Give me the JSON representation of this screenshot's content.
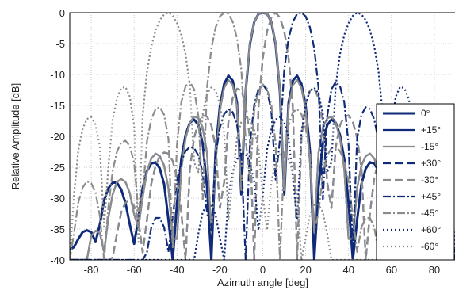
{
  "chart_data": {
    "type": "line",
    "title": "",
    "xlabel": "Azimuth angle [deg]",
    "ylabel": "Relative Amplitude [dB]",
    "xlim": [
      -90,
      90
    ],
    "ylim": [
      -40,
      0
    ],
    "xticks": [
      -80,
      -60,
      -40,
      -20,
      0,
      20,
      40,
      60,
      80
    ],
    "yticks": [
      0,
      -5,
      -10,
      -15,
      -20,
      -25,
      -30,
      -35,
      -40
    ],
    "grid": true,
    "legend_position": "right",
    "x": [
      -90,
      -88,
      -86,
      -84,
      -82,
      -80,
      -78,
      -76,
      -74,
      -72,
      -70,
      -68,
      -66,
      -64,
      -62,
      -60,
      -58,
      -56,
      -54,
      -52,
      -50,
      -48,
      -46,
      -44,
      -42,
      -40,
      -38,
      -36,
      -34,
      -32,
      -30,
      -28,
      -26,
      -24,
      -22,
      -20,
      -18,
      -16,
      -14,
      -12,
      -10,
      -8,
      -6,
      -4,
      -2,
      0,
      2,
      4,
      6,
      8,
      10,
      12,
      14,
      16,
      18,
      20,
      22,
      24,
      26,
      28,
      30,
      32,
      34,
      36,
      38,
      40,
      42,
      44,
      46,
      48,
      50,
      52,
      54,
      56,
      58,
      60,
      62,
      64,
      66,
      68,
      70,
      72,
      74,
      76,
      78,
      80,
      82,
      84,
      86,
      88,
      90
    ],
    "series": [
      {
        "name": "0°",
        "color": "#0e2a78",
        "dash": "solid",
        "width": 3,
        "values": [
          -38.4,
          -37.9,
          -36.6,
          -35.5,
          -35.2,
          -35.5,
          -37.1,
          -34.3,
          -30.4,
          -28.4,
          -27.5,
          -27.5,
          -28.6,
          -30.8,
          -34.3,
          -37.4,
          -33.3,
          -28.3,
          -25.6,
          -24.4,
          -24.2,
          -25.2,
          -27.7,
          -33.5,
          -40.0,
          -30.8,
          -23.7,
          -19.8,
          -17.8,
          -17.3,
          -18.2,
          -21.2,
          -28.3,
          -40.0,
          -22.4,
          -15.1,
          -11.5,
          -10.2,
          -11.0,
          -14.6,
          -29.4,
          -12.7,
          -5.1,
          -1.5,
          -0.2,
          0.0,
          -0.2,
          -1.5,
          -5.1,
          -12.7,
          -29.4,
          -14.6,
          -11.0,
          -10.2,
          -11.5,
          -15.1,
          -22.4,
          -40.0,
          -28.3,
          -21.2,
          -18.2,
          -17.3,
          -17.8,
          -19.8,
          -23.7,
          -30.8,
          -40.0,
          -33.5,
          -27.7,
          -25.2,
          -24.2,
          -24.4,
          -25.6,
          -28.3,
          -33.3,
          -37.4,
          -34.3,
          -30.8,
          -28.6,
          -27.5,
          -27.5,
          -28.4,
          -30.4,
          -34.3,
          -37.1,
          -35.5,
          -35.2,
          -35.5,
          -36.6,
          -37.9,
          -38.4
        ]
      },
      {
        "name": "+15°",
        "color": "#0e2a78",
        "dash": "solid",
        "width": 2.2,
        "values": [
          -40,
          -40,
          -40,
          -40,
          -40,
          -36.1,
          -35.3,
          -35.6,
          -38.7,
          -33.2,
          -29.4,
          -27.4,
          -26.9,
          -27.4,
          -29.2,
          -32.6,
          -34.8,
          -29.8,
          -25.7,
          -23.6,
          -22.8,
          -23.2,
          -24.7,
          -28.4,
          -36.6,
          -36.6,
          -25.3,
          -20.3,
          -17.8,
          -16.8,
          -17.1,
          -18.6,
          -22.7,
          -35.6,
          -24.3,
          -15.7,
          -12.1,
          -10.9,
          -11.7,
          -15.1,
          -28.7,
          -12.5,
          -4.9,
          -1.5,
          -0.2,
          0.0,
          -0.2,
          -1.5,
          -4.9,
          -12.5,
          -28.7,
          -15.1,
          -11.7,
          -10.9,
          -12.1,
          -15.7,
          -24.3,
          -35.6,
          -22.7,
          -18.6,
          -17.1,
          -16.8,
          -17.8,
          -20.3,
          -25.3,
          -36.6,
          -36.6,
          -28.4,
          -24.7,
          -23.2,
          -22.8,
          -23.6,
          -25.7,
          -29.8,
          -34.8,
          -32.6,
          -29.2,
          -27.4,
          -26.9,
          -27.4,
          -29.4,
          -33.2,
          -38.7,
          -35.6,
          -35.3,
          -36.1,
          -40,
          -40,
          -40,
          -40,
          -40
        ]
      },
      {
        "name": "-15°",
        "color": "#8c8c8c",
        "dash": "solid",
        "width": 2.2,
        "values": [
          -40,
          -40,
          -40,
          -40,
          -40,
          -36.1,
          -35.3,
          -35.6,
          -38.7,
          -33.2,
          -29.4,
          -27.4,
          -26.9,
          -27.4,
          -29.2,
          -32.6,
          -34.8,
          -29.8,
          -25.7,
          -23.6,
          -22.8,
          -23.2,
          -24.7,
          -28.4,
          -36.6,
          -36.6,
          -25.3,
          -20.3,
          -17.8,
          -16.8,
          -17.1,
          -18.6,
          -22.7,
          -35.6,
          -24.3,
          -15.7,
          -12.1,
          -10.9,
          -11.7,
          -15.1,
          -28.7,
          -12.5,
          -4.9,
          -1.5,
          -0.2,
          0.0,
          -0.2,
          -1.5,
          -4.9,
          -12.5,
          -28.7,
          -15.1,
          -11.7,
          -10.9,
          -12.1,
          -15.7,
          -24.3,
          -35.6,
          -22.7,
          -18.6,
          -17.1,
          -16.8,
          -17.8,
          -20.3,
          -25.3,
          -36.6,
          -36.6,
          -28.4,
          -24.7,
          -23.2,
          -22.8,
          -23.6,
          -25.7,
          -29.8,
          -34.8,
          -32.6,
          -29.2,
          -27.4,
          -26.9,
          -27.4,
          -29.4,
          -33.2,
          -38.7,
          -35.6,
          -35.3,
          -36.1,
          -40,
          -40,
          -40,
          -40,
          -40
        ]
      },
      {
        "name": "+30°",
        "color": "#0e2a78",
        "dash": "10,5",
        "width": 2.2,
        "values": [
          -40,
          -40,
          -40,
          -40,
          -40,
          -40,
          -40,
          -40,
          -40,
          -40,
          -39.6,
          -35.8,
          -32.3,
          -30.7,
          -30.4,
          -31.3,
          -33.6,
          -38.8,
          -33.5,
          -27.7,
          -24.8,
          -23.2,
          -22.6,
          -22.8,
          -24.0,
          -26.7,
          -32.3,
          -40.0,
          -25.3,
          -20.2,
          -17.7,
          -16.6,
          -16.8,
          -18.2,
          -21.8,
          -31.6,
          -27.4,
          -17.5,
          -13.8,
          -12.3,
          -12.6,
          -14.7,
          -20.4,
          -40.0,
          -15.2,
          -7.3,
          -3.0,
          -0.8,
          0.0,
          -0.8,
          -3.0,
          -7.3,
          -15.2,
          -40.0,
          -20.4,
          -14.7,
          -12.6,
          -12.3,
          -13.8,
          -17.5,
          -27.4,
          -31.6,
          -21.8,
          -18.2,
          -16.8,
          -16.6,
          -17.7,
          -20.2,
          -25.3,
          -40.0,
          -32.3,
          -26.7,
          -24.0,
          -22.8,
          -22.6,
          -23.2,
          -24.8,
          -27.7,
          -33.5,
          -38.8,
          -33.6,
          -31.3,
          -30.4,
          -30.7,
          -32.3,
          -35.8,
          -39.6,
          -40,
          -40,
          -40,
          -40
        ]
      },
      {
        "name": "-30°",
        "color": "#8c8c8c",
        "dash": "10,5",
        "width": 2.2,
        "values": [
          -40,
          -40,
          -40,
          -40,
          -40,
          -40,
          -40,
          -40,
          -40,
          -40,
          -39.6,
          -35.8,
          -32.3,
          -30.7,
          -30.4,
          -31.3,
          -33.6,
          -38.8,
          -33.5,
          -27.7,
          -24.8,
          -23.2,
          -22.6,
          -22.8,
          -24.0,
          -26.7,
          -32.3,
          -40.0,
          -25.3,
          -20.2,
          -17.7,
          -16.6,
          -16.8,
          -18.2,
          -21.8,
          -31.6,
          -27.4,
          -17.5,
          -13.8,
          -12.3,
          -12.6,
          -14.7,
          -20.4,
          -40.0,
          -15.2,
          -7.3,
          -3.0,
          -0.8,
          0.0,
          -0.8,
          -3.0,
          -7.3,
          -15.2,
          -40.0,
          -20.4,
          -14.7,
          -12.6,
          -12.3,
          -13.8,
          -17.5,
          -27.4,
          -31.6,
          -21.8,
          -18.2,
          -16.8,
          -16.6,
          -17.7,
          -20.2,
          -25.3,
          -40.0,
          -32.3,
          -26.7,
          -24.0,
          -22.8,
          -22.6,
          -23.2,
          -24.8,
          -27.7,
          -33.5,
          -38.8,
          -33.6,
          -31.3,
          -30.4,
          -30.7,
          -32.3,
          -35.8,
          -39.6,
          -40,
          -40,
          -40,
          -40
        ]
      },
      {
        "name": "+45°",
        "color": "#0e2a78",
        "dash": "10,3,2,3",
        "width": 2.2,
        "values": [
          -40,
          -40,
          -40,
          -40,
          -40,
          -40,
          -40,
          -40,
          -40,
          -40,
          -40,
          -40,
          -40,
          -40,
          -40,
          -40,
          -40,
          -40,
          -38.8,
          -34.8,
          -33.2,
          -33.2,
          -34.7,
          -38.7,
          -33.1,
          -27.2,
          -24.1,
          -22.4,
          -21.7,
          -21.9,
          -23.1,
          -25.9,
          -32.4,
          -35.4,
          -23.0,
          -18.6,
          -16.4,
          -15.6,
          -16.1,
          -18.2,
          -23.2,
          -40.0,
          -21.2,
          -14.9,
          -12.3,
          -11.6,
          -12.6,
          -15.9,
          -27.0,
          -20.6,
          -9.2,
          -4.2,
          -1.5,
          -0.2,
          0.0,
          -0.6,
          -2.4,
          -5.8,
          -12.1,
          -30.2,
          -16.8,
          -12.4,
          -11.2,
          -11.9,
          -14.5,
          -21.3,
          -38.2,
          -20.4,
          -16.5,
          -15.3,
          -15.6,
          -17.3,
          -20.8,
          -29.5,
          -32.1,
          -24.3,
          -21.6,
          -20.7,
          -21.0,
          -22.5,
          -25.6,
          -31.5,
          -40.0,
          -32.8,
          -29.1,
          -27.6,
          -27.3,
          -28.3,
          -30.7,
          -35.6,
          -40.0
        ]
      },
      {
        "name": "-45°",
        "color": "#8c8c8c",
        "dash": "10,3,2,3",
        "width": 2.2,
        "values": [
          -40.0,
          -35.6,
          -30.7,
          -28.3,
          -27.3,
          -27.6,
          -29.1,
          -32.8,
          -40.0,
          -31.5,
          -25.6,
          -22.5,
          -21.0,
          -20.7,
          -21.6,
          -24.3,
          -32.1,
          -29.5,
          -20.8,
          -17.3,
          -15.6,
          -15.3,
          -16.5,
          -20.4,
          -38.2,
          -21.3,
          -14.5,
          -11.9,
          -11.2,
          -12.4,
          -16.8,
          -30.2,
          -12.1,
          -5.8,
          -2.4,
          -0.6,
          0.0,
          -0.2,
          -1.5,
          -4.2,
          -9.2,
          -20.6,
          -27.0,
          -15.9,
          -12.6,
          -11.6,
          -12.3,
          -14.9,
          -21.2,
          -40.0,
          -23.2,
          -18.2,
          -16.1,
          -15.6,
          -16.4,
          -18.6,
          -23.0,
          -35.4,
          -32.4,
          -25.9,
          -23.1,
          -21.9,
          -21.7,
          -22.4,
          -24.1,
          -27.2,
          -33.1,
          -38.7,
          -34.7,
          -33.2,
          -33.2,
          -34.8,
          -38.8,
          -40,
          -40,
          -40,
          -40,
          -40,
          -40,
          -40,
          -40,
          -40,
          -40,
          -40,
          -40,
          -40,
          -40,
          -40,
          -40,
          -40,
          -40
        ]
      },
      {
        "name": "+60°",
        "color": "#0e2a78",
        "dash": "2,3",
        "width": 2.2,
        "values": [
          -40,
          -40,
          -40,
          -40,
          -40,
          -40,
          -40,
          -40,
          -40,
          -40,
          -40,
          -40,
          -40,
          -40,
          -40,
          -40,
          -40,
          -40,
          -40,
          -40,
          -40,
          -40,
          -40,
          -40,
          -40,
          -40,
          -40,
          -40,
          -40,
          -40,
          -35.7,
          -32.3,
          -31.0,
          -31.1,
          -32.7,
          -36.5,
          -40.0,
          -29.5,
          -25.7,
          -23.7,
          -22.8,
          -22.9,
          -24.2,
          -27.4,
          -35.2,
          -29.7,
          -22.1,
          -18.9,
          -17.3,
          -16.9,
          -17.7,
          -20.2,
          -26.7,
          -33.5,
          -19.5,
          -14.8,
          -12.6,
          -12.1,
          -13.1,
          -16.4,
          -25.8,
          -24.2,
          -11.8,
          -6.7,
          -3.6,
          -1.7,
          -0.5,
          0.0,
          -0.3,
          -1.2,
          -2.9,
          -5.5,
          -9.6,
          -16.6,
          -37.1,
          -18.3,
          -13.6,
          -12.0,
          -12.2,
          -13.9,
          -17.4,
          -25.0,
          -34.6,
          -21.6,
          -18.1,
          -16.9,
          -17.2,
          -18.8,
          -22.3,
          -29.4,
          -40.0
        ]
      },
      {
        "name": "-60°",
        "color": "#8c8c8c",
        "dash": "2,3",
        "width": 2.2,
        "values": [
          -40.0,
          -29.4,
          -22.3,
          -18.8,
          -17.2,
          -16.9,
          -18.1,
          -21.6,
          -34.6,
          -25.0,
          -17.4,
          -13.9,
          -12.2,
          -12.0,
          -13.6,
          -18.3,
          -37.1,
          -16.6,
          -9.6,
          -5.5,
          -2.9,
          -1.2,
          -0.3,
          0.0,
          -0.5,
          -1.7,
          -3.6,
          -6.7,
          -11.8,
          -24.2,
          -25.8,
          -16.4,
          -13.1,
          -12.1,
          -12.6,
          -14.8,
          -19.5,
          -33.5,
          -26.7,
          -20.2,
          -17.7,
          -16.9,
          -17.3,
          -18.9,
          -22.1,
          -29.7,
          -35.2,
          -27.4,
          -24.2,
          -22.9,
          -22.8,
          -23.7,
          -25.7,
          -29.5,
          -40.0,
          -36.5,
          -32.7,
          -31.1,
          -31.0,
          -32.3,
          -35.7,
          -40,
          -40,
          -40,
          -40,
          -40,
          -40,
          -40,
          -40,
          -40,
          -40,
          -40,
          -40,
          -40,
          -40,
          -40,
          -40,
          -40,
          -40,
          -40,
          -40,
          -40,
          -40,
          -40,
          -40,
          -40,
          -40,
          -40,
          -40,
          -40,
          -40
        ]
      }
    ]
  }
}
